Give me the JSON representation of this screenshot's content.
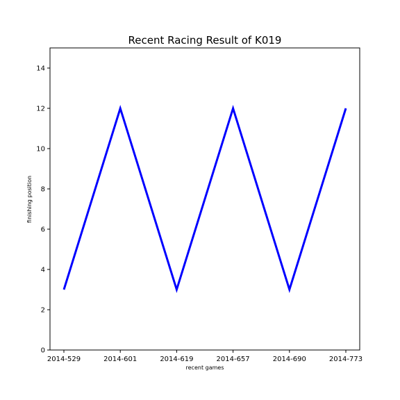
{
  "chart_data": {
    "type": "line",
    "title": "Recent Racing Result of K019",
    "xlabel": "recent games",
    "ylabel": "finishing position",
    "categories": [
      "2014-529",
      "2014-601",
      "2014-619",
      "2014-657",
      "2014-690",
      "2014-773"
    ],
    "series": [
      {
        "values": [
          3,
          12,
          3,
          12,
          3,
          12
        ],
        "color": "#0000ff"
      }
    ],
    "ylim": [
      0,
      15
    ],
    "yticks": [
      0,
      2,
      4,
      6,
      8,
      10,
      12,
      14
    ],
    "grid": false,
    "legend": "none"
  }
}
